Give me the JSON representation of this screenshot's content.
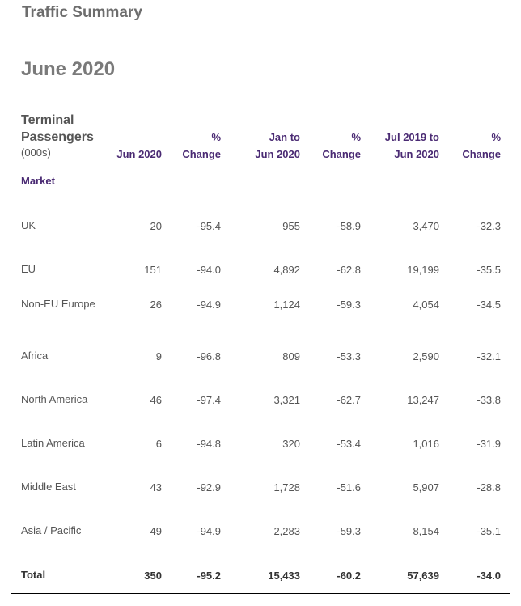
{
  "title": "Traffic Summary",
  "period": "June 2020",
  "table": {
    "group_header": "Terminal Passengers",
    "unit": "(000s)",
    "columns": [
      [
        "Jun 2020"
      ],
      [
        "%",
        "Change"
      ],
      [
        "Jan to",
        "Jun 2020"
      ],
      [
        "%",
        "Change"
      ],
      [
        "Jul 2019 to",
        "Jun 2020"
      ],
      [
        "%",
        "Change"
      ]
    ],
    "row_header": "Market",
    "rows": [
      {
        "market": "UK",
        "values": [
          "20",
          "-95.4",
          "955",
          "-58.9",
          "3,470",
          "-32.3"
        ]
      },
      {
        "market": "EU",
        "values": [
          "151",
          "-94.0",
          "4,892",
          "-62.8",
          "19,199",
          "-35.5"
        ]
      },
      {
        "market": "Non-EU Europe",
        "values": [
          "26",
          "-94.9",
          "1,124",
          "-59.3",
          "4,054",
          "-34.5"
        ]
      },
      {
        "market": "Africa",
        "values": [
          "9",
          "-96.8",
          "809",
          "-53.3",
          "2,590",
          "-32.1"
        ]
      },
      {
        "market": "North America",
        "values": [
          "46",
          "-97.4",
          "3,321",
          "-62.7",
          "13,247",
          "-33.8"
        ]
      },
      {
        "market": "Latin America",
        "values": [
          "6",
          "-94.8",
          "320",
          "-53.4",
          "1,016",
          "-31.9"
        ]
      },
      {
        "market": "Middle East",
        "values": [
          "43",
          "-92.9",
          "1,728",
          "-51.6",
          "5,907",
          "-28.8"
        ]
      },
      {
        "market": "Asia / Pacific",
        "values": [
          "49",
          "-94.9",
          "2,283",
          "-59.3",
          "8,154",
          "-35.1"
        ]
      }
    ],
    "total": {
      "market": "Total",
      "values": [
        "350",
        "-95.2",
        "15,433",
        "-60.2",
        "57,639",
        "-34.0"
      ]
    }
  }
}
